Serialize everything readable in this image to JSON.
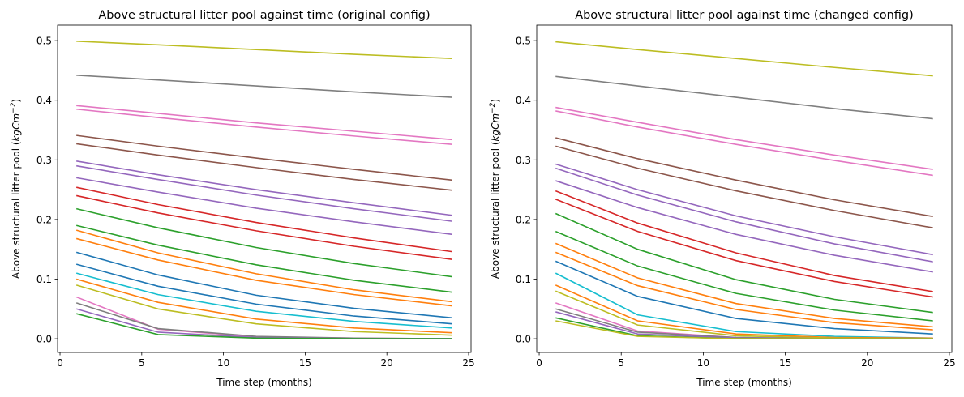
{
  "chart_data": [
    {
      "type": "line",
      "title": "Above structural litter pool against time (original config)",
      "xlabel": "Time step (months)",
      "ylabel": [
        "Above structural litter pool (",
        "kgCm",
        "−2",
        ")"
      ],
      "x": [
        1,
        6,
        12,
        18,
        24
      ],
      "xlim": [
        -0.15,
        25.15
      ],
      "xticks": [
        0,
        5,
        10,
        15,
        20,
        25
      ],
      "ylim": [
        -0.023,
        0.526
      ],
      "yticks": [
        {
          "value": 0,
          "label": "0.0"
        },
        0.1,
        0.2,
        0.3,
        0.4,
        0.5
      ],
      "series": [
        {
          "color": "#bcbd22",
          "values": [
            0.499,
            0.493,
            0.485,
            0.477,
            0.47
          ]
        },
        {
          "color": "#7f7f7f",
          "values": [
            0.442,
            0.434,
            0.424,
            0.414,
            0.405
          ]
        },
        {
          "color": "#e377c2",
          "values": [
            0.391,
            0.378,
            0.362,
            0.348,
            0.334
          ]
        },
        {
          "color": "#e377c2",
          "values": [
            0.385,
            0.371,
            0.355,
            0.34,
            0.326
          ]
        },
        {
          "color": "#8c564b",
          "values": [
            0.341,
            0.323,
            0.303,
            0.284,
            0.266
          ]
        },
        {
          "color": "#8c564b",
          "values": [
            0.327,
            0.308,
            0.287,
            0.267,
            0.249
          ]
        },
        {
          "color": "#9467bd",
          "values": [
            0.298,
            0.275,
            0.25,
            0.228,
            0.207
          ]
        },
        {
          "color": "#9467bd",
          "values": [
            0.29,
            0.267,
            0.241,
            0.218,
            0.197
          ]
        },
        {
          "color": "#9467bd",
          "values": [
            0.27,
            0.246,
            0.219,
            0.196,
            0.175
          ]
        },
        {
          "color": "#d62728",
          "values": [
            0.254,
            0.225,
            0.195,
            0.169,
            0.146
          ]
        },
        {
          "color": "#d62728",
          "values": [
            0.24,
            0.211,
            0.181,
            0.155,
            0.133
          ]
        },
        {
          "color": "#2ca02c",
          "values": [
            0.218,
            0.186,
            0.153,
            0.126,
            0.104
          ]
        },
        {
          "color": "#2ca02c",
          "values": [
            0.19,
            0.157,
            0.124,
            0.098,
            0.078
          ]
        },
        {
          "color": "#ff7f0e",
          "values": [
            0.182,
            0.144,
            0.109,
            0.082,
            0.062
          ]
        },
        {
          "color": "#ff7f0e",
          "values": [
            0.168,
            0.132,
            0.098,
            0.074,
            0.055
          ]
        },
        {
          "color": "#1f77b4",
          "values": [
            0.145,
            0.107,
            0.073,
            0.051,
            0.035
          ]
        },
        {
          "color": "#1f77b4",
          "values": [
            0.125,
            0.088,
            0.058,
            0.038,
            0.025
          ]
        },
        {
          "color": "#17becf",
          "values": [
            0.11,
            0.074,
            0.046,
            0.029,
            0.018
          ]
        },
        {
          "color": "#ff7f0e",
          "values": [
            0.1,
            0.061,
            0.033,
            0.018,
            0.01
          ]
        },
        {
          "color": "#bcbd22",
          "values": [
            0.09,
            0.05,
            0.025,
            0.012,
            0.006
          ]
        },
        {
          "color": "#e377c2",
          "values": [
            0.07,
            0.016,
            0.003,
            0.001,
            0.0
          ]
        },
        {
          "color": "#7f7f7f",
          "values": [
            0.06,
            0.017,
            0.004,
            0.001,
            0.0
          ]
        },
        {
          "color": "#9467bd",
          "values": [
            0.05,
            0.011,
            0.002,
            0.0,
            0.0
          ]
        },
        {
          "color": "#2ca02c",
          "values": [
            0.042,
            0.007,
            0.001,
            0.0,
            0.0
          ]
        }
      ]
    },
    {
      "type": "line",
      "title": "Above structural litter pool against time (changed config)",
      "xlabel": "Time step (months)",
      "ylabel": [
        "Above structural litter pool (",
        "kgCm",
        "−2",
        ")"
      ],
      "x": [
        1,
        6,
        12,
        18,
        24
      ],
      "xlim": [
        -0.15,
        25.15
      ],
      "xticks": [
        0,
        5,
        10,
        15,
        20,
        25
      ],
      "ylim": [
        -0.023,
        0.526
      ],
      "yticks": [
        {
          "value": 0,
          "label": "0.0"
        },
        0.1,
        0.2,
        0.3,
        0.4,
        0.5
      ],
      "series": [
        {
          "color": "#bcbd22",
          "values": [
            0.498,
            0.485,
            0.47,
            0.455,
            0.441
          ]
        },
        {
          "color": "#7f7f7f",
          "values": [
            0.44,
            0.424,
            0.405,
            0.386,
            0.369
          ]
        },
        {
          "color": "#e377c2",
          "values": [
            0.388,
            0.363,
            0.334,
            0.308,
            0.284
          ]
        },
        {
          "color": "#e377c2",
          "values": [
            0.382,
            0.355,
            0.326,
            0.299,
            0.274
          ]
        },
        {
          "color": "#8c564b",
          "values": [
            0.337,
            0.302,
            0.266,
            0.233,
            0.205
          ]
        },
        {
          "color": "#8c564b",
          "values": [
            0.323,
            0.286,
            0.248,
            0.215,
            0.186
          ]
        },
        {
          "color": "#9467bd",
          "values": [
            0.293,
            0.25,
            0.206,
            0.171,
            0.141
          ]
        },
        {
          "color": "#9467bd",
          "values": [
            0.286,
            0.241,
            0.196,
            0.159,
            0.129
          ]
        },
        {
          "color": "#9467bd",
          "values": [
            0.265,
            0.22,
            0.175,
            0.14,
            0.112
          ]
        },
        {
          "color": "#d62728",
          "values": [
            0.248,
            0.194,
            0.144,
            0.106,
            0.079
          ]
        },
        {
          "color": "#d62728",
          "values": [
            0.234,
            0.18,
            0.131,
            0.096,
            0.07
          ]
        },
        {
          "color": "#2ca02c",
          "values": [
            0.21,
            0.15,
            0.099,
            0.066,
            0.044
          ]
        },
        {
          "color": "#2ca02c",
          "values": [
            0.18,
            0.122,
            0.076,
            0.048,
            0.03
          ]
        },
        {
          "color": "#ff7f0e",
          "values": [
            0.16,
            0.102,
            0.059,
            0.034,
            0.02
          ]
        },
        {
          "color": "#ff7f0e",
          "values": [
            0.145,
            0.089,
            0.049,
            0.027,
            0.015
          ]
        },
        {
          "color": "#1f77b4",
          "values": [
            0.13,
            0.071,
            0.034,
            0.017,
            0.008
          ]
        },
        {
          "color": "#17becf",
          "values": [
            0.11,
            0.04,
            0.012,
            0.004,
            0.001
          ]
        },
        {
          "color": "#ff7f0e",
          "values": [
            0.09,
            0.03,
            0.008,
            0.002,
            0.001
          ]
        },
        {
          "color": "#bcbd22",
          "values": [
            0.08,
            0.023,
            0.005,
            0.001,
            0.0
          ]
        },
        {
          "color": "#e377c2",
          "values": [
            0.06,
            0.013,
            0.002,
            0.0,
            0.0
          ]
        },
        {
          "color": "#7f7f7f",
          "values": [
            0.05,
            0.011,
            0.002,
            0.0,
            0.0
          ]
        },
        {
          "color": "#9467bd",
          "values": [
            0.045,
            0.008,
            0.001,
            0.0,
            0.0
          ]
        },
        {
          "color": "#2ca02c",
          "values": [
            0.035,
            0.005,
            0.0,
            0.0,
            0.0
          ]
        },
        {
          "color": "#bcbd22",
          "values": [
            0.03,
            0.004,
            0.0,
            0.0,
            0.0
          ]
        }
      ]
    }
  ]
}
